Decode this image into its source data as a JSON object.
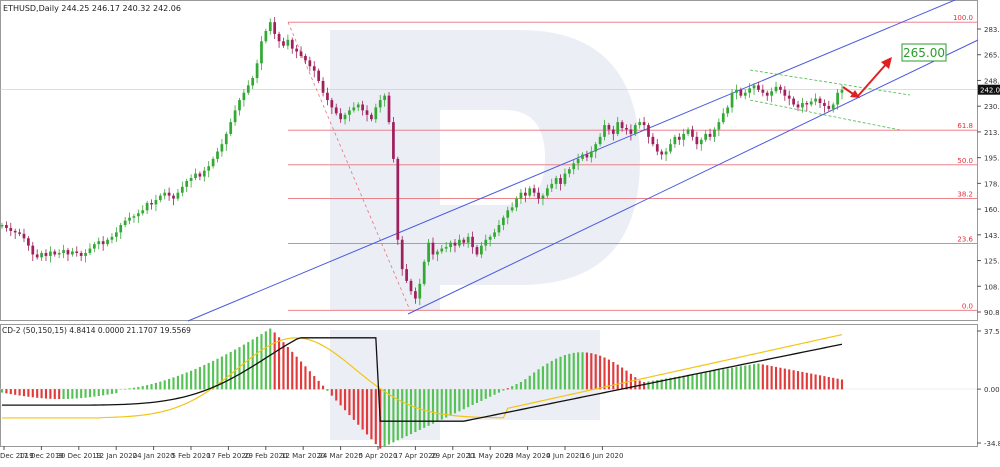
{
  "header": {
    "symbol_line": "ETHUSD,Daily  244.25 246.17 240.32 242.06"
  },
  "target_label": "265.00",
  "macd_header": "CD-2 (50,150,15) 4.8414 0.0000 21.1707 19.5569",
  "chart_data": {
    "type": "candlestick",
    "title": "ETHUSD,Daily",
    "ohlc_header": {
      "open": 244.25,
      "high": 246.17,
      "low": 240.32,
      "close": 242.06
    },
    "price_axis": {
      "ticks": [
        "283.35",
        "265.95",
        "248.55",
        "230.80",
        "213.35",
        "195.85",
        "178.35",
        "160.85",
        "143.35",
        "125.85",
        "108.35",
        "90.85"
      ],
      "current_price": "242.0",
      "range": [
        83,
        297
      ]
    },
    "x_ticks": [
      "Dec 2019",
      "17 Dec 2019",
      "30 Dec 2019",
      "12 Jan 2020",
      "24 Jan 2020",
      "5 Feb 2020",
      "17 Feb 2020",
      "29 Feb 2020",
      "12 Mar 2020",
      "24 Mar 2020",
      "5 Apr 2020",
      "17 Apr 2020",
      "29 Apr 2020",
      "11 May 2020",
      "23 May 2020",
      "4 Jun 2020",
      "16 Jun 2020"
    ],
    "fibonacci_levels": [
      {
        "label": "100.0",
        "price": 288
      },
      {
        "label": "61.8",
        "price": 214.5
      },
      {
        "label": "50.0",
        "price": 191
      },
      {
        "label": "38.2",
        "price": 168
      },
      {
        "label": "23.6",
        "price": 137.5
      },
      {
        "label": "0.0",
        "price": 92
      }
    ],
    "target_price": 265.0,
    "macd": {
      "params": "50,150,15",
      "values": {
        "hist": 4.8414,
        "zero": 0.0,
        "macd": 21.1707,
        "signal": 19.5569
      },
      "axis_ticks": [
        "37.50",
        "0.00",
        "-34.87"
      ],
      "range": [
        -36,
        39
      ]
    }
  }
}
